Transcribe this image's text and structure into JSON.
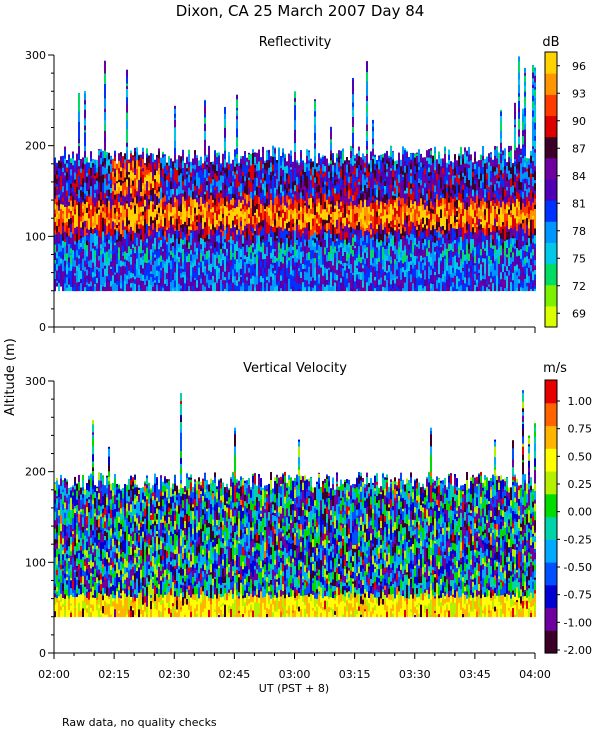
{
  "figure": {
    "title": "Dixon, CA 25 March 2007  Day  84",
    "ylabel": "Altitude (m)",
    "xlabel": "UT  (PST + 8)",
    "note": "Raw data, no quality checks"
  },
  "chart_data": [
    {
      "type": "heatmap",
      "title": "Reflectivity",
      "x_ticks": [
        "02:00",
        "02:15",
        "02:30",
        "02:45",
        "03:00",
        "03:15",
        "03:30",
        "03:45",
        "04:00"
      ],
      "xlim": [
        "02:00",
        "04:00"
      ],
      "ylim": [
        0,
        300
      ],
      "y_ticks": [
        "0",
        "100",
        "200",
        "300"
      ],
      "colorbar": {
        "unit": "dB",
        "ticks": [
          "96",
          "93",
          "90",
          "87",
          "84",
          "81",
          "78",
          "75",
          "72",
          "69"
        ],
        "range": [
          67.5,
          97.5
        ],
        "colors": [
          "#dcff00",
          "#7cf000",
          "#00dc64",
          "#00c8e6",
          "#0096ff",
          "#0032ff",
          "#5000b4",
          "#6e00a0",
          "#3c0028",
          "#dc0000",
          "#ff3c00",
          "#ff9600",
          "#ffd200"
        ]
      },
      "data_extent": {
        "min_altitude": 40,
        "typical_top": 200,
        "sparse_top": 300
      },
      "features": [
        {
          "label": "main echo layer",
          "altitude_range": [
            100,
            140
          ],
          "peak_dB": 90
        },
        {
          "label": "enhanced echoes near 02:15-02:20",
          "altitude_range": [
            120,
            180
          ],
          "peak_dB": 92
        }
      ]
    },
    {
      "type": "heatmap",
      "title": "Vertical Velocity",
      "x_ticks": [
        "02:00",
        "02:15",
        "02:30",
        "02:45",
        "03:00",
        "03:15",
        "03:30",
        "03:45",
        "04:00"
      ],
      "xlim": [
        "02:00",
        "04:00"
      ],
      "ylim": [
        0,
        300
      ],
      "y_ticks": [
        "0",
        "100",
        "200",
        "300"
      ],
      "colorbar": {
        "unit": "m/s",
        "ticks": [
          "1.00",
          "0.75",
          "0.50",
          "0.25",
          "0.00",
          "-0.25",
          "-0.50",
          "-0.75",
          "-1.00",
          "-2.00"
        ],
        "colors": [
          "#3c0028",
          "#6e00a0",
          "#0000d2",
          "#0050ff",
          "#00aaff",
          "#00d2aa",
          "#00dc00",
          "#b4f000",
          "#ffff00",
          "#ffb400",
          "#ff6400",
          "#e60000"
        ]
      },
      "data_extent": {
        "min_altitude": 40,
        "typical_top": 200,
        "sparse_top": 300
      },
      "features": [
        {
          "label": "positive velocities near ground",
          "altitude_range": [
            40,
            70
          ],
          "value_mps": 0.5
        },
        {
          "label": "mixed up/down drafts",
          "altitude_range": [
            70,
            200
          ],
          "value_mps": 0.0
        }
      ]
    }
  ]
}
